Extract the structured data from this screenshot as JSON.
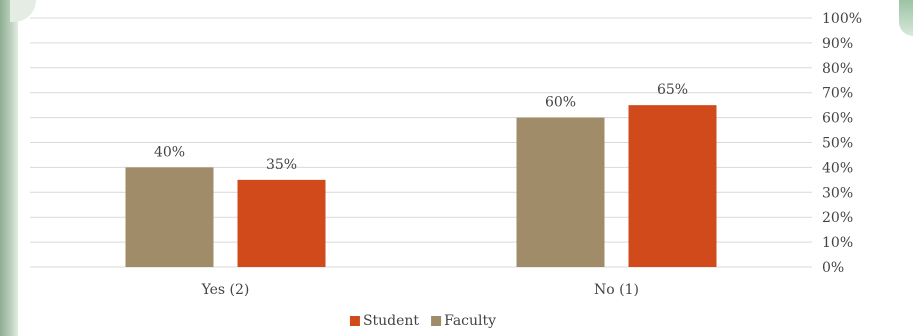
{
  "chart_data": {
    "type": "bar",
    "categories": [
      "Yes (2)",
      "No (1)"
    ],
    "series": [
      {
        "name": "Faculty",
        "values": [
          40,
          60
        ],
        "labels": [
          "40%",
          "60%"
        ],
        "color": "#a18c6a"
      },
      {
        "name": "Student",
        "values": [
          35,
          65
        ],
        "labels": [
          "35%",
          "65%"
        ],
        "color": "#d04a1c"
      }
    ],
    "ylim": [
      0,
      100
    ],
    "yticks": [
      "0%",
      "10%",
      "20%",
      "30%",
      "40%",
      "50%",
      "60%",
      "70%",
      "80%",
      "90%",
      "100%"
    ],
    "yaxis_position": "right",
    "grid": true,
    "legend": {
      "placement": "bottom",
      "items": [
        {
          "name": "Student",
          "color": "#d04a1c"
        },
        {
          "name": "Faculty",
          "color": "#a18c6a"
        }
      ]
    }
  }
}
